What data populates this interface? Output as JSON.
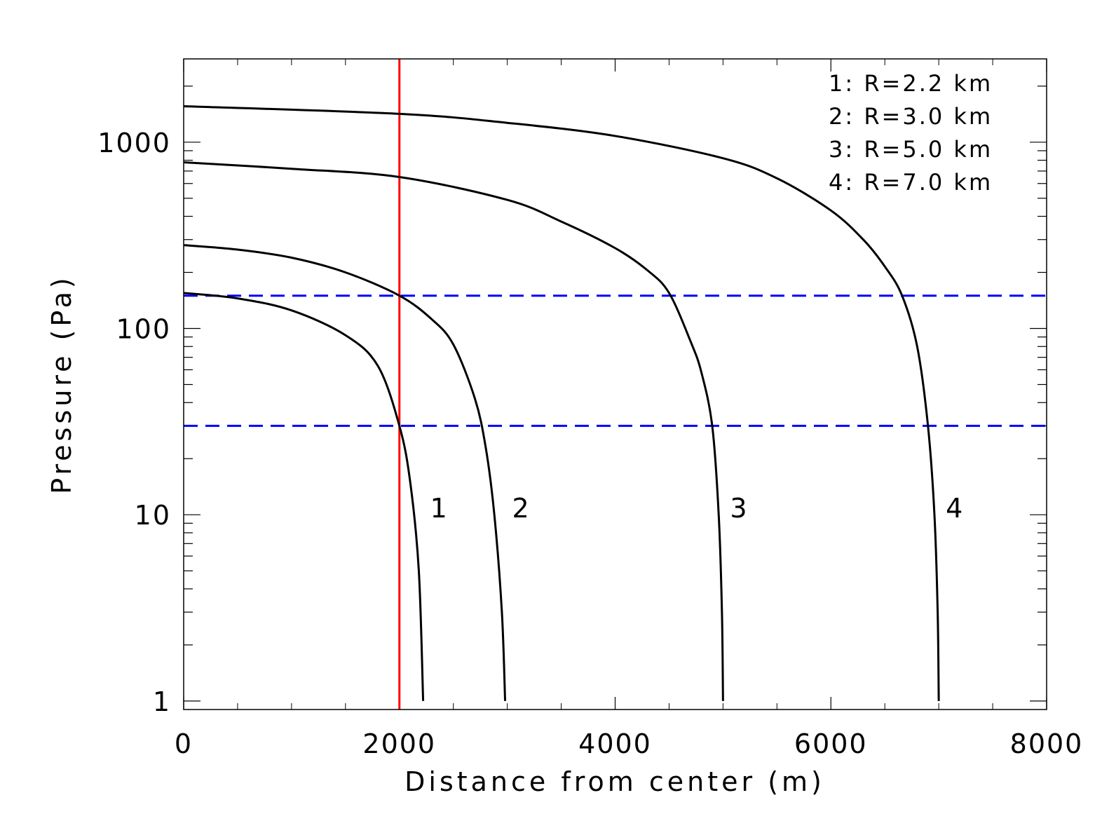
{
  "chart_data": {
    "type": "line",
    "title": "",
    "xlabel": "Distance from center (m)",
    "ylabel": "Pressure (Pa)",
    "xlim": [
      0,
      8000
    ],
    "ylim": [
      0.9,
      2800
    ],
    "yscale": "log",
    "xticks": [
      0,
      2000,
      4000,
      6000,
      8000
    ],
    "xtick_labels": [
      "0",
      "2000",
      "4000",
      "6000",
      "8000"
    ],
    "yticks": [
      1,
      10,
      100,
      1000
    ],
    "ytick_labels": [
      "1",
      "10",
      "100",
      "1000"
    ],
    "grid": false,
    "legend": {
      "position": "top-right",
      "entries": [
        "1: R=2.2 km",
        "2: R=3.0 km",
        "3: R=5.0 km",
        "4: R=7.0 km"
      ]
    },
    "series": [
      {
        "label": "1",
        "color": "#000000",
        "points": [
          [
            0,
            155
          ],
          [
            500,
            145
          ],
          [
            1000,
            125
          ],
          [
            1500,
            92
          ],
          [
            1800,
            63
          ],
          [
            2000,
            30
          ],
          [
            2100,
            15
          ],
          [
            2180,
            5
          ],
          [
            2220,
            1
          ]
        ]
      },
      {
        "label": "2",
        "color": "#000000",
        "points": [
          [
            0,
            280
          ],
          [
            500,
            265
          ],
          [
            1000,
            240
          ],
          [
            1500,
            200
          ],
          [
            2000,
            150
          ],
          [
            2300,
            112
          ],
          [
            2500,
            82
          ],
          [
            2700,
            42
          ],
          [
            2800,
            23
          ],
          [
            2880,
            10
          ],
          [
            2950,
            3
          ],
          [
            2980,
            1
          ]
        ]
      },
      {
        "label": "3",
        "color": "#000000",
        "points": [
          [
            0,
            780
          ],
          [
            1000,
            720
          ],
          [
            2000,
            650
          ],
          [
            3000,
            490
          ],
          [
            3500,
            375
          ],
          [
            4000,
            270
          ],
          [
            4300,
            205
          ],
          [
            4500,
            155
          ],
          [
            4700,
            85
          ],
          [
            4800,
            58
          ],
          [
            4900,
            30
          ],
          [
            4960,
            10
          ],
          [
            4990,
            3
          ],
          [
            5000,
            1
          ]
        ]
      },
      {
        "label": "4",
        "color": "#000000",
        "points": [
          [
            0,
            1560
          ],
          [
            2000,
            1420
          ],
          [
            3000,
            1270
          ],
          [
            4000,
            1080
          ],
          [
            5000,
            820
          ],
          [
            5500,
            640
          ],
          [
            6000,
            430
          ],
          [
            6300,
            300
          ],
          [
            6500,
            215
          ],
          [
            6660,
            150
          ],
          [
            6800,
            80
          ],
          [
            6900,
            30
          ],
          [
            6960,
            10
          ],
          [
            6990,
            3
          ],
          [
            7000,
            1
          ]
        ]
      }
    ],
    "reference_lines": [
      {
        "orientation": "vertical",
        "x": 2000,
        "color": "#ff0000",
        "style": "solid"
      },
      {
        "orientation": "horizontal",
        "y": 150,
        "color": "#0000ff",
        "style": "dashed"
      },
      {
        "orientation": "horizontal",
        "y": 30,
        "color": "#0000ff",
        "style": "dashed"
      }
    ]
  }
}
